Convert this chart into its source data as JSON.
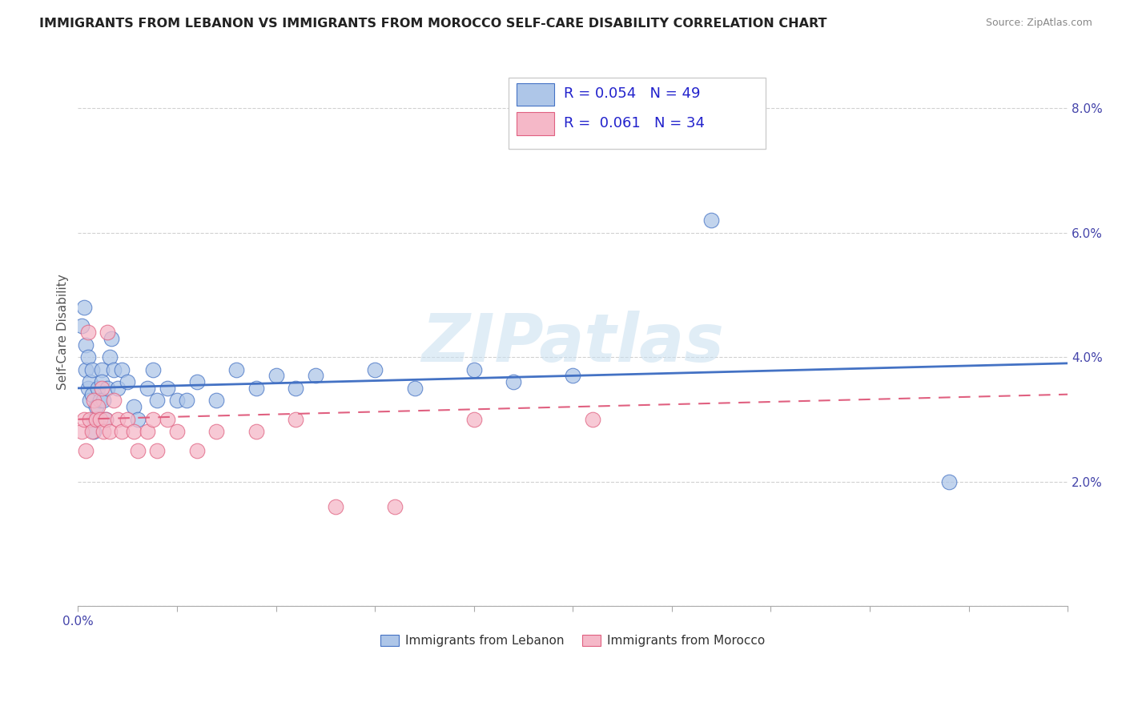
{
  "title": "IMMIGRANTS FROM LEBANON VS IMMIGRANTS FROM MOROCCO SELF-CARE DISABILITY CORRELATION CHART",
  "source": "Source: ZipAtlas.com",
  "ylabel": "Self-Care Disability",
  "xlim": [
    0.0,
    0.5
  ],
  "ylim": [
    0.0,
    0.088
  ],
  "xticks": [
    0.0,
    0.05,
    0.1,
    0.15,
    0.2,
    0.25,
    0.3,
    0.35,
    0.4,
    0.45,
    0.5
  ],
  "xticklabels_show": {
    "0.0": "0.0%"
  },
  "yticks": [
    0.0,
    0.02,
    0.04,
    0.06,
    0.08
  ],
  "yticklabels": [
    "",
    "2.0%",
    "4.0%",
    "6.0%",
    "8.0%"
  ],
  "legend_label1": "Immigrants from Lebanon",
  "legend_label2": "Immigrants from Morocco",
  "R1": "0.054",
  "N1": "49",
  "R2": "0.061",
  "N2": "34",
  "color_lebanon": "#aec6e8",
  "color_morocco": "#f5b8c8",
  "line_color_lebanon": "#4472c4",
  "line_color_morocco": "#e06080",
  "watermark": "ZIPatlas",
  "leb_trend_y0": 0.035,
  "leb_trend_y1": 0.039,
  "mor_trend_y0": 0.03,
  "mor_trend_y1": 0.034,
  "lebanon_x": [
    0.002,
    0.003,
    0.004,
    0.004,
    0.005,
    0.005,
    0.006,
    0.006,
    0.007,
    0.007,
    0.008,
    0.008,
    0.009,
    0.01,
    0.01,
    0.011,
    0.012,
    0.012,
    0.013,
    0.014,
    0.015,
    0.016,
    0.017,
    0.018,
    0.02,
    0.022,
    0.025,
    0.028,
    0.03,
    0.035,
    0.038,
    0.04,
    0.045,
    0.05,
    0.055,
    0.06,
    0.07,
    0.08,
    0.09,
    0.1,
    0.11,
    0.12,
    0.15,
    0.17,
    0.2,
    0.22,
    0.25,
    0.32,
    0.44
  ],
  "lebanon_y": [
    0.045,
    0.048,
    0.038,
    0.042,
    0.035,
    0.04,
    0.036,
    0.033,
    0.034,
    0.038,
    0.03,
    0.028,
    0.032,
    0.03,
    0.035,
    0.033,
    0.038,
    0.036,
    0.033,
    0.03,
    0.035,
    0.04,
    0.043,
    0.038,
    0.035,
    0.038,
    0.036,
    0.032,
    0.03,
    0.035,
    0.038,
    0.033,
    0.035,
    0.033,
    0.033,
    0.036,
    0.033,
    0.038,
    0.035,
    0.037,
    0.035,
    0.037,
    0.038,
    0.035,
    0.038,
    0.036,
    0.037,
    0.062,
    0.02
  ],
  "morocco_x": [
    0.002,
    0.003,
    0.004,
    0.005,
    0.006,
    0.007,
    0.008,
    0.009,
    0.01,
    0.011,
    0.012,
    0.013,
    0.014,
    0.015,
    0.016,
    0.018,
    0.02,
    0.022,
    0.025,
    0.028,
    0.03,
    0.035,
    0.038,
    0.04,
    0.045,
    0.05,
    0.06,
    0.07,
    0.09,
    0.11,
    0.13,
    0.16,
    0.2,
    0.26
  ],
  "morocco_y": [
    0.028,
    0.03,
    0.025,
    0.044,
    0.03,
    0.028,
    0.033,
    0.03,
    0.032,
    0.03,
    0.035,
    0.028,
    0.03,
    0.044,
    0.028,
    0.033,
    0.03,
    0.028,
    0.03,
    0.028,
    0.025,
    0.028,
    0.03,
    0.025,
    0.03,
    0.028,
    0.025,
    0.028,
    0.028,
    0.03,
    0.016,
    0.016,
    0.03,
    0.03
  ]
}
